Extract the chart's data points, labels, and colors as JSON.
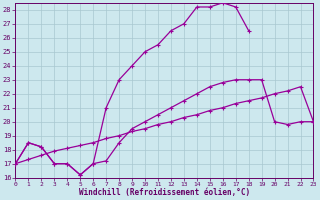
{
  "xlabel": "Windchill (Refroidissement éolien,°C)",
  "bg_color": "#cde8ee",
  "grid_color": "#a8c8d0",
  "line_color": "#990099",
  "xlim": [
    0,
    23
  ],
  "ylim": [
    16,
    28.5
  ],
  "xticks": [
    0,
    1,
    2,
    3,
    4,
    5,
    6,
    7,
    8,
    9,
    10,
    11,
    12,
    13,
    14,
    15,
    16,
    17,
    18,
    19,
    20,
    21,
    22,
    23
  ],
  "yticks": [
    16,
    17,
    18,
    19,
    20,
    21,
    22,
    23,
    24,
    25,
    26,
    27,
    28
  ],
  "curve1_x": [
    0,
    1,
    2,
    3,
    4,
    5,
    6,
    7,
    8,
    9,
    10,
    11,
    12,
    13,
    14,
    15,
    16,
    17,
    18,
    19,
    20,
    21,
    22,
    23
  ],
  "curve1_y": [
    17.0,
    18.5,
    18.2,
    17.0,
    17.0,
    16.2,
    17.0,
    17.2,
    18.5,
    19.5,
    20.0,
    20.5,
    21.0,
    21.5,
    22.0,
    22.5,
    22.8,
    23.0,
    23.0,
    23.0,
    20.0,
    19.8,
    20.0,
    20.0
  ],
  "curve2_x": [
    0,
    1,
    2,
    3,
    4,
    5,
    6,
    7,
    8,
    9,
    10,
    11,
    12,
    13,
    14,
    15,
    16,
    17,
    18
  ],
  "curve2_y": [
    17.0,
    18.5,
    18.2,
    17.0,
    17.0,
    16.2,
    17.0,
    21.0,
    23.0,
    24.0,
    25.0,
    25.5,
    26.5,
    27.0,
    28.2,
    28.2,
    28.5,
    28.2,
    26.5
  ],
  "curve3_x": [
    0,
    1,
    2,
    3,
    4,
    5,
    6,
    7,
    8,
    9,
    10,
    11,
    12,
    13,
    14,
    15,
    16,
    17,
    18,
    19,
    20,
    21,
    22,
    23
  ],
  "curve3_y": [
    17.0,
    17.3,
    17.6,
    17.9,
    18.1,
    18.3,
    18.5,
    18.8,
    19.0,
    19.3,
    19.5,
    19.8,
    20.0,
    20.3,
    20.5,
    20.8,
    21.0,
    21.3,
    21.5,
    21.7,
    22.0,
    22.2,
    22.5,
    20.0
  ]
}
